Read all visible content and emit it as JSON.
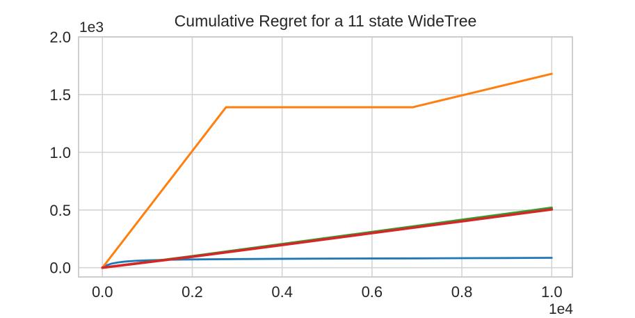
{
  "chart_data": {
    "type": "line",
    "title": "Cumulative Regret for a 11 state WideTree",
    "xlabel": "",
    "ylabel": "",
    "x_offset_label": "1e4",
    "y_offset_label": "1e3",
    "xlim": [
      -530,
      10460
    ],
    "ylim": [
      -80,
      2000
    ],
    "grid": true,
    "legend_position": "none",
    "background_color": "#ffffff",
    "grid_color": "#d4d4d4",
    "spine_color": "#c9c9c9",
    "text_color": "#262626",
    "x_ticks": {
      "values": [
        0,
        2000,
        4000,
        6000,
        8000,
        10000
      ],
      "labels": [
        "0.0",
        "0.2",
        "0.4",
        "0.6",
        "0.8",
        "1.0"
      ]
    },
    "y_ticks": {
      "values": [
        0,
        500,
        1000,
        1500,
        2000
      ],
      "labels": [
        "0.0",
        "0.5",
        "1.0",
        "1.5",
        "2.0"
      ]
    },
    "series": [
      {
        "name": "series-blue",
        "color": "#1f77b4",
        "line_width": 2.8,
        "x": [
          0,
          100,
          200,
          350,
          500,
          750,
          1000,
          1500,
          2000,
          3000,
          4000,
          5000,
          6000,
          7000,
          8000,
          9000,
          10000
        ],
        "y": [
          0,
          22,
          35,
          46,
          53,
          60,
          64,
          69,
          72,
          75,
          77,
          79,
          80,
          81,
          83,
          84,
          86
        ]
      },
      {
        "name": "series-orange",
        "color": "#ff7f0e",
        "line_width": 3.0,
        "x": [
          0,
          2750,
          6900,
          10000
        ],
        "y": [
          0,
          1390,
          1390,
          1680
        ]
      },
      {
        "name": "series-green",
        "color": "#2ca02c",
        "line_width": 3.2,
        "x": [
          0,
          2000,
          4000,
          6000,
          8000,
          10000
        ],
        "y": [
          0,
          100,
          205,
          310,
          415,
          520
        ]
      },
      {
        "name": "series-red",
        "color": "#d62728",
        "line_width": 3.6,
        "x": [
          0,
          2000,
          4000,
          6000,
          8000,
          10000
        ],
        "y": [
          0,
          95,
          197,
          300,
          402,
          505
        ]
      }
    ]
  }
}
